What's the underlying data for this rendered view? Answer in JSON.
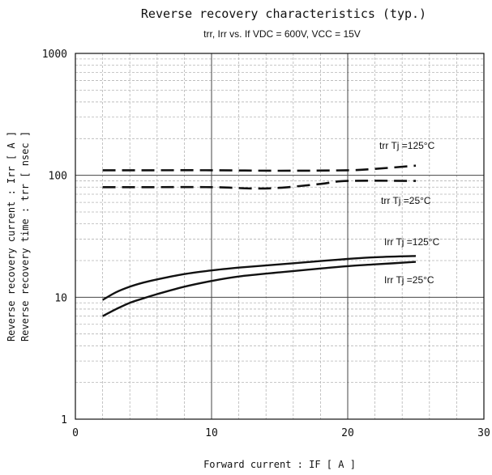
{
  "chart_data": {
    "type": "line",
    "title": "Reverse recovery characteristics (typ.)",
    "subtitle": "trr, Irr vs. If VDC = 600V, VCC = 15V",
    "xlabel": "Forward current :  IF  [ A ]",
    "ylabel": [
      "Reverse recovery current : Irr  [ A ]",
      "Reverse recovery time :  trr  [ nsec ]"
    ],
    "xlim": [
      0,
      30
    ],
    "ylim": [
      1,
      1000
    ],
    "yscale": "log",
    "grid": true,
    "x_ticks": [
      "0",
      "10",
      "20",
      "30"
    ],
    "y_ticks": [
      "1",
      "10",
      "100",
      "1000"
    ],
    "series": [
      {
        "name": "trr Tj =125°C",
        "style": "dashed",
        "color": "#111111",
        "x": [
          2,
          5,
          10,
          15,
          20,
          22,
          25
        ],
        "y": [
          110,
          110,
          110,
          109,
          110,
          113,
          120
        ]
      },
      {
        "name": "trr Tj =25°C",
        "style": "dashed",
        "color": "#111111",
        "x": [
          2,
          5,
          10,
          13,
          15,
          18,
          20,
          25
        ],
        "y": [
          80,
          80,
          80,
          78,
          79,
          85,
          90,
          90
        ]
      },
      {
        "name": "Irr Tj =125°C",
        "style": "solid",
        "color": "#111111",
        "x": [
          2,
          3,
          4,
          5,
          6,
          8,
          10,
          12,
          15,
          18,
          20,
          22,
          25
        ],
        "y": [
          9.5,
          11,
          12.2,
          13.2,
          14,
          15.5,
          16.6,
          17.5,
          18.6,
          19.8,
          20.6,
          21.3,
          21.8
        ]
      },
      {
        "name": "Irr Tj =25°C",
        "style": "solid",
        "color": "#111111",
        "x": [
          2,
          3,
          4,
          5,
          6,
          8,
          10,
          12,
          15,
          18,
          20,
          22,
          25
        ],
        "y": [
          7,
          8,
          9,
          9.8,
          10.6,
          12.2,
          13.6,
          14.8,
          16,
          17.2,
          18,
          18.6,
          19.5
        ]
      }
    ],
    "annotations": {
      "trr_125": "trr Tj =125°C",
      "trr_25": "trr Tj =25°C",
      "irr_125": "Irr Tj =125°C",
      "irr_25": "Irr Tj =25°C"
    }
  }
}
